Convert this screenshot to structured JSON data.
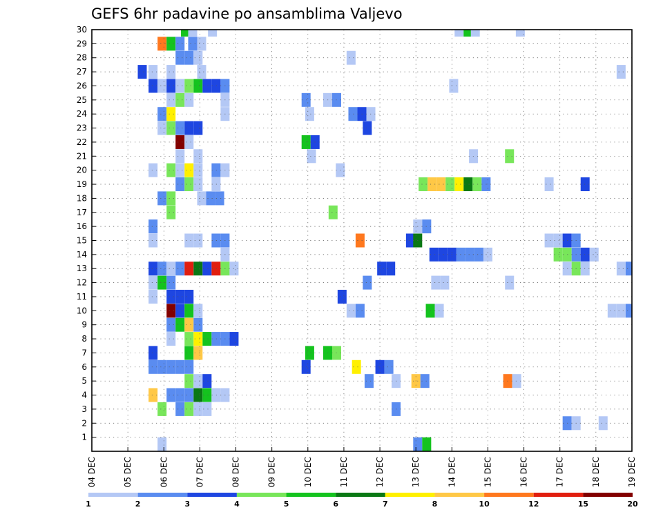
{
  "chart_data": {
    "type": "heatmap",
    "title": "GEFS 6hr padavine po ansamblima Valjevo",
    "x_ticks": [
      "04 DEC",
      "05 DEC",
      "06 DEC",
      "07 DEC",
      "08 DEC",
      "09 DEC",
      "10 DEC",
      "11 DEC",
      "12 DEC",
      "13 DEC",
      "14 DEC",
      "15 DEC",
      "16 DEC",
      "17 DEC",
      "18 DEC",
      "19 DEC"
    ],
    "y_ticks": [
      "1",
      "2",
      "3",
      "4",
      "5",
      "6",
      "7",
      "8",
      "9",
      "10",
      "11",
      "12",
      "13",
      "14",
      "15",
      "16",
      "17",
      "18",
      "19",
      "20",
      "21",
      "22",
      "23",
      "24",
      "25",
      "26",
      "27",
      "28",
      "29",
      "30"
    ],
    "x_range": [
      0,
      15
    ],
    "y_range": [
      0,
      30
    ],
    "grid": true,
    "colorbar": {
      "labels": [
        "1",
        "2",
        "3",
        "4",
        "5",
        "6",
        "7",
        "8",
        "10",
        "12",
        "15",
        "20"
      ],
      "colors": [
        "#b4c8f5",
        "#5a8cf0",
        "#1e46e1",
        "#78e65a",
        "#14c31e",
        "#0a7814",
        "#fff000",
        "#ffc846",
        "#ff781e",
        "#e11e0f",
        "#820000"
      ]
    },
    "points": [
      [
        30,
        2.6,
        5
      ],
      [
        30,
        2.8,
        1
      ],
      [
        30,
        3.35,
        1
      ],
      [
        30,
        10.2,
        1
      ],
      [
        30,
        10.45,
        5
      ],
      [
        30,
        10.65,
        1
      ],
      [
        30,
        11.9,
        1
      ],
      [
        29,
        1.95,
        9
      ],
      [
        29,
        2.2,
        5
      ],
      [
        29,
        2.45,
        2
      ],
      [
        29,
        2.8,
        2
      ],
      [
        29,
        3.05,
        1
      ],
      [
        28,
        2.45,
        2
      ],
      [
        28,
        2.7,
        2
      ],
      [
        28,
        2.95,
        1
      ],
      [
        28,
        7.2,
        1
      ],
      [
        27,
        1.4,
        3
      ],
      [
        27,
        1.7,
        1
      ],
      [
        27,
        2.2,
        1
      ],
      [
        27,
        3.05,
        1
      ],
      [
        27,
        14.7,
        1
      ],
      [
        26,
        1.7,
        3
      ],
      [
        26,
        1.95,
        1
      ],
      [
        26,
        2.2,
        3
      ],
      [
        26,
        2.45,
        1
      ],
      [
        26,
        2.7,
        4
      ],
      [
        26,
        2.95,
        5
      ],
      [
        26,
        3.2,
        3
      ],
      [
        26,
        3.45,
        3
      ],
      [
        26,
        3.7,
        2
      ],
      [
        26,
        10.05,
        1
      ],
      [
        25,
        2.2,
        1
      ],
      [
        25,
        2.45,
        4
      ],
      [
        25,
        2.7,
        1
      ],
      [
        25,
        3.7,
        1
      ],
      [
        25,
        5.95,
        2
      ],
      [
        25,
        6.55,
        1
      ],
      [
        25,
        6.8,
        2
      ],
      [
        24,
        1.95,
        2
      ],
      [
        24,
        2.2,
        7
      ],
      [
        24,
        3.7,
        1
      ],
      [
        24,
        6.05,
        1
      ],
      [
        24,
        7.25,
        2
      ],
      [
        24,
        7.5,
        3
      ],
      [
        24,
        7.75,
        1
      ],
      [
        23,
        1.95,
        1
      ],
      [
        23,
        2.2,
        4
      ],
      [
        23,
        2.45,
        2
      ],
      [
        23,
        2.7,
        3
      ],
      [
        23,
        2.95,
        3
      ],
      [
        23,
        7.65,
        3
      ],
      [
        22,
        2.45,
        11
      ],
      [
        22,
        2.7,
        1
      ],
      [
        22,
        5.95,
        5
      ],
      [
        22,
        6.2,
        3
      ],
      [
        21,
        2.45,
        1
      ],
      [
        21,
        2.95,
        1
      ],
      [
        21,
        6.1,
        1
      ],
      [
        21,
        10.6,
        1
      ],
      [
        21,
        11.6,
        4
      ],
      [
        20,
        1.7,
        1
      ],
      [
        20,
        2.2,
        4
      ],
      [
        20,
        2.45,
        1
      ],
      [
        20,
        2.7,
        7
      ],
      [
        20,
        2.95,
        1
      ],
      [
        20,
        3.45,
        2
      ],
      [
        20,
        3.7,
        1
      ],
      [
        20,
        6.9,
        1
      ],
      [
        19,
        2.45,
        2
      ],
      [
        19,
        2.7,
        4
      ],
      [
        19,
        2.95,
        1
      ],
      [
        19,
        3.45,
        1
      ],
      [
        19,
        9.2,
        4
      ],
      [
        19,
        9.45,
        8
      ],
      [
        19,
        9.7,
        8
      ],
      [
        19,
        9.95,
        4
      ],
      [
        19,
        10.2,
        7
      ],
      [
        19,
        10.45,
        6
      ],
      [
        19,
        10.7,
        4
      ],
      [
        19,
        10.95,
        2
      ],
      [
        19,
        12.7,
        1
      ],
      [
        19,
        13.7,
        3
      ],
      [
        18,
        1.95,
        2
      ],
      [
        18,
        2.2,
        4
      ],
      [
        18,
        3.05,
        1
      ],
      [
        18,
        3.3,
        2
      ],
      [
        18,
        3.55,
        2
      ],
      [
        17,
        2.2,
        4
      ],
      [
        17,
        6.7,
        4
      ],
      [
        16,
        1.7,
        2
      ],
      [
        16,
        9.05,
        1
      ],
      [
        16,
        9.3,
        2
      ],
      [
        15,
        1.7,
        1
      ],
      [
        15,
        2.7,
        1
      ],
      [
        15,
        2.95,
        1
      ],
      [
        15,
        3.45,
        2
      ],
      [
        15,
        3.7,
        2
      ],
      [
        15,
        7.45,
        9
      ],
      [
        15,
        8.85,
        3
      ],
      [
        15,
        9.05,
        6
      ],
      [
        15,
        12.7,
        1
      ],
      [
        15,
        12.95,
        1
      ],
      [
        15,
        13.2,
        3
      ],
      [
        15,
        13.45,
        2
      ],
      [
        14,
        3.7,
        1
      ],
      [
        14,
        9.5,
        3
      ],
      [
        14,
        9.75,
        3
      ],
      [
        14,
        10.0,
        3
      ],
      [
        14,
        10.25,
        2
      ],
      [
        14,
        10.5,
        2
      ],
      [
        14,
        10.75,
        2
      ],
      [
        14,
        11.0,
        1
      ],
      [
        14,
        12.95,
        4
      ],
      [
        14,
        13.2,
        4
      ],
      [
        14,
        13.45,
        2
      ],
      [
        14,
        13.7,
        3
      ],
      [
        14,
        13.95,
        1
      ],
      [
        13,
        1.7,
        3
      ],
      [
        13,
        1.95,
        2
      ],
      [
        13,
        2.2,
        1
      ],
      [
        13,
        2.45,
        2
      ],
      [
        13,
        2.7,
        10
      ],
      [
        13,
        2.95,
        6
      ],
      [
        13,
        3.2,
        3
      ],
      [
        13,
        3.45,
        10
      ],
      [
        13,
        3.7,
        4
      ],
      [
        13,
        3.95,
        1
      ],
      [
        13,
        8.05,
        3
      ],
      [
        13,
        8.3,
        3
      ],
      [
        13,
        13.2,
        1
      ],
      [
        13,
        13.45,
        4
      ],
      [
        13,
        13.7,
        1
      ],
      [
        13,
        14.7,
        1
      ],
      [
        13,
        14.95,
        2
      ],
      [
        12,
        1.7,
        1
      ],
      [
        12,
        1.95,
        5
      ],
      [
        12,
        2.2,
        2
      ],
      [
        12,
        7.65,
        2
      ],
      [
        12,
        9.55,
        1
      ],
      [
        12,
        9.8,
        1
      ],
      [
        12,
        11.6,
        1
      ],
      [
        11,
        1.7,
        1
      ],
      [
        11,
        2.2,
        3
      ],
      [
        11,
        2.45,
        3
      ],
      [
        11,
        2.7,
        3
      ],
      [
        11,
        6.95,
        3
      ],
      [
        10,
        2.2,
        11
      ],
      [
        10,
        2.45,
        3
      ],
      [
        10,
        2.7,
        5
      ],
      [
        10,
        2.95,
        1
      ],
      [
        10,
        7.2,
        1
      ],
      [
        10,
        7.45,
        2
      ],
      [
        10,
        9.4,
        5
      ],
      [
        10,
        9.65,
        1
      ],
      [
        10,
        14.45,
        1
      ],
      [
        10,
        14.7,
        1
      ],
      [
        10,
        14.95,
        2
      ],
      [
        9,
        2.2,
        2
      ],
      [
        9,
        2.45,
        5
      ],
      [
        9,
        2.7,
        8
      ],
      [
        9,
        2.95,
        2
      ],
      [
        8,
        2.2,
        1
      ],
      [
        8,
        2.7,
        4
      ],
      [
        8,
        2.95,
        7
      ],
      [
        8,
        3.2,
        5
      ],
      [
        8,
        3.45,
        2
      ],
      [
        8,
        3.7,
        2
      ],
      [
        8,
        3.95,
        3
      ],
      [
        7,
        1.7,
        3
      ],
      [
        7,
        2.7,
        5
      ],
      [
        7,
        2.95,
        8
      ],
      [
        7,
        6.05,
        5
      ],
      [
        7,
        6.55,
        5
      ],
      [
        7,
        6.8,
        4
      ],
      [
        6,
        1.7,
        2
      ],
      [
        6,
        1.95,
        2
      ],
      [
        6,
        2.2,
        2
      ],
      [
        6,
        2.45,
        2
      ],
      [
        6,
        2.7,
        2
      ],
      [
        6,
        5.95,
        3
      ],
      [
        6,
        7.35,
        7
      ],
      [
        6,
        8.0,
        3
      ],
      [
        6,
        8.25,
        2
      ],
      [
        5,
        2.7,
        4
      ],
      [
        5,
        2.95,
        1
      ],
      [
        5,
        3.2,
        3
      ],
      [
        5,
        7.7,
        2
      ],
      [
        5,
        8.45,
        1
      ],
      [
        5,
        9.0,
        8
      ],
      [
        5,
        9.25,
        2
      ],
      [
        5,
        11.55,
        9
      ],
      [
        5,
        11.8,
        1
      ],
      [
        4,
        1.7,
        8
      ],
      [
        4,
        2.2,
        2
      ],
      [
        4,
        2.45,
        2
      ],
      [
        4,
        2.7,
        2
      ],
      [
        4,
        2.95,
        6
      ],
      [
        4,
        3.2,
        5
      ],
      [
        4,
        3.45,
        1
      ],
      [
        4,
        3.7,
        1
      ],
      [
        3,
        1.95,
        4
      ],
      [
        3,
        2.45,
        2
      ],
      [
        3,
        2.7,
        4
      ],
      [
        3,
        2.95,
        1
      ],
      [
        3,
        3.2,
        1
      ],
      [
        3,
        8.45,
        2
      ],
      [
        2,
        13.2,
        2
      ],
      [
        2,
        13.45,
        1
      ],
      [
        2,
        14.2,
        1
      ],
      [
        0.5,
        1.95,
        1
      ],
      [
        0.5,
        9.05,
        2
      ],
      [
        0.5,
        9.3,
        5
      ]
    ]
  }
}
